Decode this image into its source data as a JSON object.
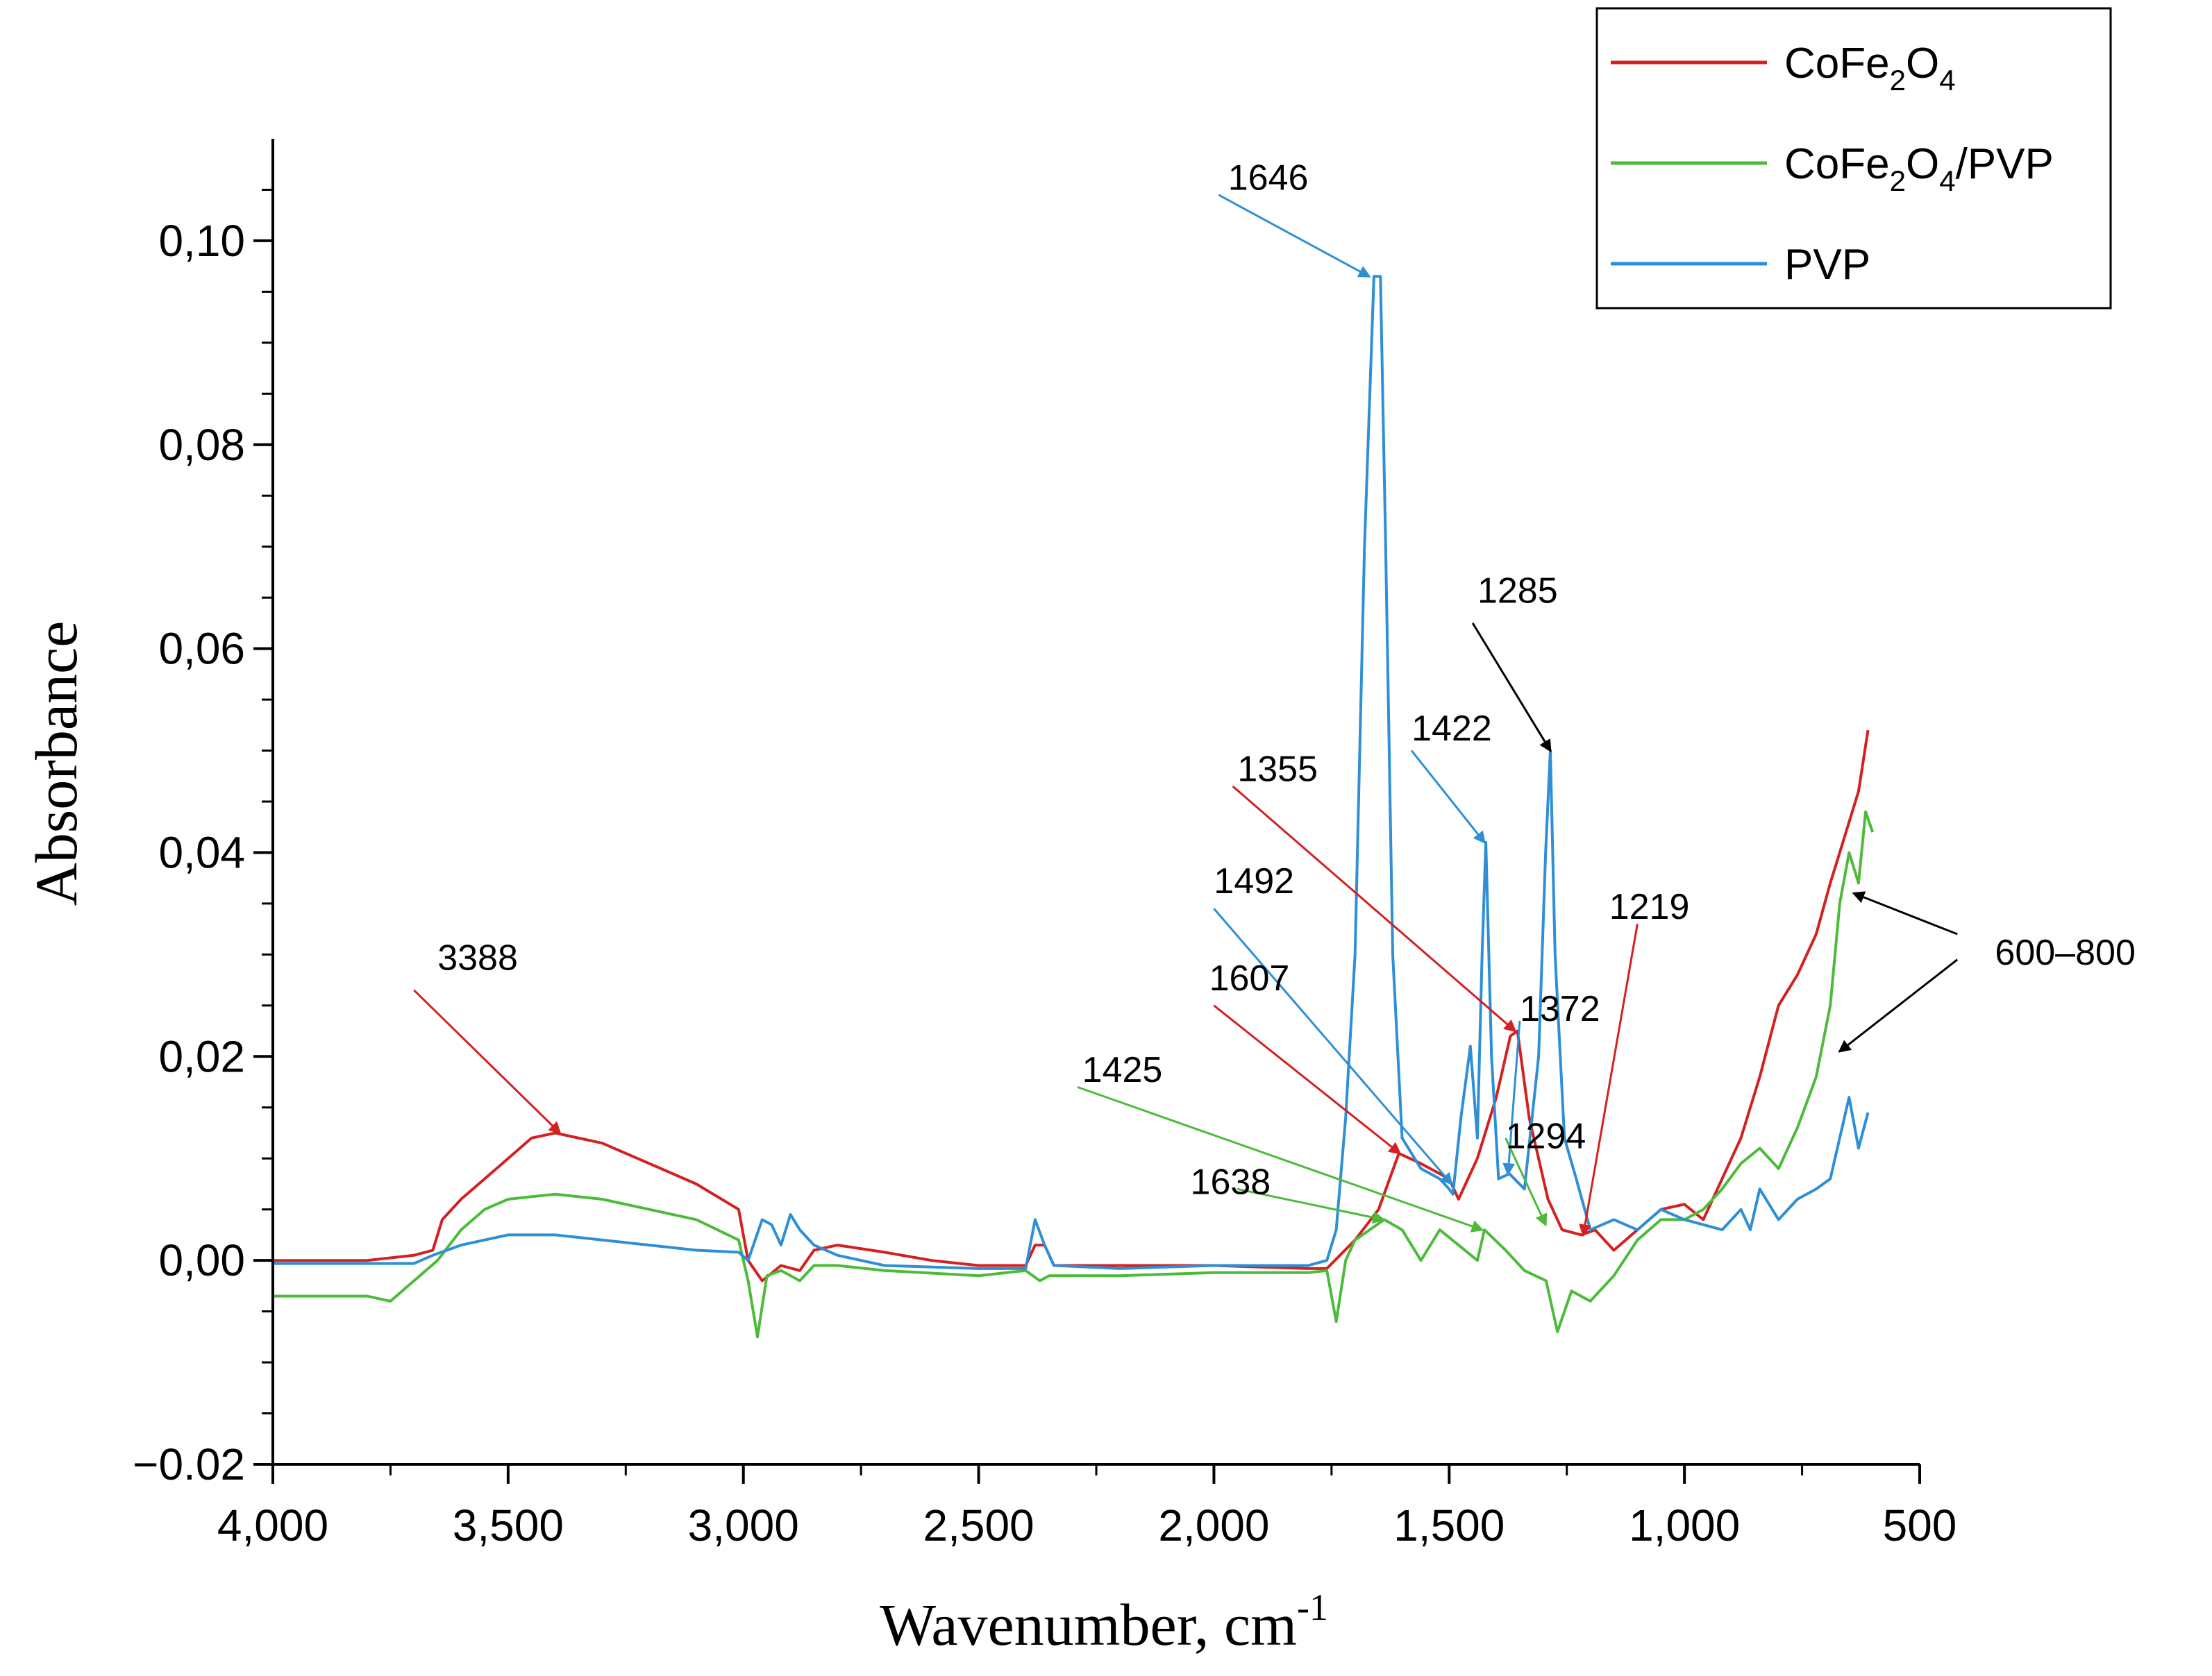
{
  "chart_data": {
    "type": "line",
    "title": "",
    "xlabel": "Wavenumber, cm",
    "xlabel_sup": "-1",
    "ylabel": "Absorbance",
    "xlim": [
      4000,
      500
    ],
    "ylim": [
      -0.02,
      0.11
    ],
    "x_ticks": [
      {
        "value": 4000,
        "label": "4,000"
      },
      {
        "value": 3500,
        "label": "3,500"
      },
      {
        "value": 3000,
        "label": "3,000"
      },
      {
        "value": 2500,
        "label": "2,500"
      },
      {
        "value": 2000,
        "label": "2,000"
      },
      {
        "value": 1500,
        "label": "1,500"
      },
      {
        "value": 1000,
        "label": "1,000"
      },
      {
        "value": 500,
        "label": "500"
      }
    ],
    "y_ticks": [
      {
        "value": -0.02,
        "label": "−0.02"
      },
      {
        "value": 0.0,
        "label": "0,00"
      },
      {
        "value": 0.02,
        "label": "0,02"
      },
      {
        "value": 0.04,
        "label": "0,04"
      },
      {
        "value": 0.06,
        "label": "0,06"
      },
      {
        "value": 0.08,
        "label": "0,08"
      },
      {
        "value": 0.1,
        "label": "0,10"
      }
    ],
    "legend": {
      "position": "top-right",
      "entries": [
        {
          "series": "CoFe2O4",
          "text": "CoFe",
          "sub1": "2",
          "mid": "O",
          "sub2": "4",
          "tail": ""
        },
        {
          "series": "CoFe2O4/PVP",
          "text": "CoFe",
          "sub1": "2",
          "mid": "O",
          "sub2": "4",
          "tail": "/PVP"
        },
        {
          "series": "PVP",
          "text": "PVP",
          "sub1": "",
          "mid": "",
          "sub2": "",
          "tail": ""
        }
      ]
    },
    "series": [
      {
        "name": "CoFe2O4",
        "color": "#d42020",
        "points": [
          [
            4000,
            0
          ],
          [
            3800,
            0
          ],
          [
            3700,
            0.0005
          ],
          [
            3660,
            0.001
          ],
          [
            3640,
            0.004
          ],
          [
            3600,
            0.006
          ],
          [
            3550,
            0.008
          ],
          [
            3500,
            0.01
          ],
          [
            3450,
            0.012
          ],
          [
            3400,
            0.0125
          ],
          [
            3300,
            0.0115
          ],
          [
            3200,
            0.0095
          ],
          [
            3100,
            0.0075
          ],
          [
            3010,
            0.005
          ],
          [
            2990,
            0.0
          ],
          [
            2960,
            -0.002
          ],
          [
            2920,
            -0.0005
          ],
          [
            2880,
            -0.001
          ],
          [
            2850,
            0.001
          ],
          [
            2800,
            0.0015
          ],
          [
            2700,
            0.0008
          ],
          [
            2600,
            0.0
          ],
          [
            2500,
            -0.0005
          ],
          [
            2400,
            -0.0005
          ],
          [
            2380,
            0.0015
          ],
          [
            2360,
            0.0015
          ],
          [
            2340,
            -0.0005
          ],
          [
            2200,
            -0.0005
          ],
          [
            2000,
            -0.0005
          ],
          [
            1800,
            -0.0008
          ],
          [
            1760,
            -0.0008
          ],
          [
            1700,
            0.002
          ],
          [
            1650,
            0.005
          ],
          [
            1607,
            0.0105
          ],
          [
            1560,
            0.0095
          ],
          [
            1520,
            0.0085
          ],
          [
            1500,
            0.008
          ],
          [
            1480,
            0.006
          ],
          [
            1440,
            0.01
          ],
          [
            1400,
            0.016
          ],
          [
            1370,
            0.022
          ],
          [
            1355,
            0.0225
          ],
          [
            1330,
            0.014
          ],
          [
            1290,
            0.006
          ],
          [
            1260,
            0.003
          ],
          [
            1219,
            0.0025
          ],
          [
            1190,
            0.003
          ],
          [
            1150,
            0.001
          ],
          [
            1100,
            0.003
          ],
          [
            1050,
            0.005
          ],
          [
            1000,
            0.0055
          ],
          [
            960,
            0.004
          ],
          [
            920,
            0.008
          ],
          [
            880,
            0.012
          ],
          [
            840,
            0.018
          ],
          [
            800,
            0.025
          ],
          [
            760,
            0.028
          ],
          [
            720,
            0.032
          ],
          [
            690,
            0.037
          ],
          [
            670,
            0.04
          ],
          [
            650,
            0.043
          ],
          [
            630,
            0.046
          ],
          [
            610,
            0.052
          ]
        ]
      },
      {
        "name": "CoFe2O4/PVP",
        "color": "#4cbb3a",
        "points": [
          [
            4000,
            -0.0035
          ],
          [
            3900,
            -0.0035
          ],
          [
            3800,
            -0.0035
          ],
          [
            3750,
            -0.004
          ],
          [
            3700,
            -0.002
          ],
          [
            3650,
            0.0
          ],
          [
            3600,
            0.003
          ],
          [
            3550,
            0.005
          ],
          [
            3500,
            0.006
          ],
          [
            3400,
            0.0065
          ],
          [
            3300,
            0.006
          ],
          [
            3200,
            0.005
          ],
          [
            3100,
            0.004
          ],
          [
            3010,
            0.002
          ],
          [
            2990,
            -0.002
          ],
          [
            2970,
            -0.0075
          ],
          [
            2950,
            -0.0015
          ],
          [
            2920,
            -0.001
          ],
          [
            2880,
            -0.002
          ],
          [
            2850,
            -0.0005
          ],
          [
            2800,
            -0.0005
          ],
          [
            2700,
            -0.001
          ],
          [
            2500,
            -0.0015
          ],
          [
            2400,
            -0.001
          ],
          [
            2370,
            -0.002
          ],
          [
            2350,
            -0.0015
          ],
          [
            2200,
            -0.0015
          ],
          [
            2000,
            -0.0012
          ],
          [
            1800,
            -0.0012
          ],
          [
            1760,
            -0.001
          ],
          [
            1740,
            -0.006
          ],
          [
            1720,
            0.0
          ],
          [
            1700,
            0.002
          ],
          [
            1638,
            0.004
          ],
          [
            1600,
            0.003
          ],
          [
            1560,
            0.0
          ],
          [
            1520,
            0.003
          ],
          [
            1480,
            0.0015
          ],
          [
            1440,
            0.0
          ],
          [
            1425,
            0.003
          ],
          [
            1380,
            0.001
          ],
          [
            1340,
            -0.001
          ],
          [
            1294,
            -0.002
          ],
          [
            1270,
            -0.007
          ],
          [
            1240,
            -0.003
          ],
          [
            1200,
            -0.004
          ],
          [
            1150,
            -0.0015
          ],
          [
            1100,
            0.002
          ],
          [
            1050,
            0.004
          ],
          [
            1000,
            0.004
          ],
          [
            960,
            0.005
          ],
          [
            920,
            0.007
          ],
          [
            880,
            0.0095
          ],
          [
            840,
            0.011
          ],
          [
            800,
            0.009
          ],
          [
            760,
            0.013
          ],
          [
            720,
            0.018
          ],
          [
            690,
            0.025
          ],
          [
            670,
            0.035
          ],
          [
            650,
            0.04
          ],
          [
            630,
            0.037
          ],
          [
            615,
            0.044
          ],
          [
            600,
            0.042
          ]
        ]
      },
      {
        "name": "PVP",
        "color": "#2e8fd6",
        "points": [
          [
            4000,
            -0.0003
          ],
          [
            3800,
            -0.0003
          ],
          [
            3700,
            -0.0003
          ],
          [
            3660,
            0.0005
          ],
          [
            3600,
            0.0015
          ],
          [
            3500,
            0.0025
          ],
          [
            3400,
            0.0025
          ],
          [
            3300,
            0.002
          ],
          [
            3200,
            0.0015
          ],
          [
            3100,
            0.001
          ],
          [
            3010,
            0.0008
          ],
          [
            2990,
            0.0
          ],
          [
            2960,
            0.004
          ],
          [
            2940,
            0.0035
          ],
          [
            2920,
            0.0015
          ],
          [
            2900,
            0.0045
          ],
          [
            2880,
            0.003
          ],
          [
            2850,
            0.0015
          ],
          [
            2800,
            0.0005
          ],
          [
            2700,
            -0.0005
          ],
          [
            2500,
            -0.0008
          ],
          [
            2400,
            -0.0008
          ],
          [
            2380,
            0.004
          ],
          [
            2360,
            0.0015
          ],
          [
            2340,
            -0.0005
          ],
          [
            2200,
            -0.0008
          ],
          [
            2000,
            -0.0005
          ],
          [
            1800,
            -0.0005
          ],
          [
            1760,
            0.0
          ],
          [
            1740,
            0.003
          ],
          [
            1720,
            0.014
          ],
          [
            1700,
            0.03
          ],
          [
            1680,
            0.07
          ],
          [
            1660,
            0.0965
          ],
          [
            1646,
            0.0965
          ],
          [
            1635,
            0.07
          ],
          [
            1620,
            0.03
          ],
          [
            1600,
            0.012
          ],
          [
            1560,
            0.009
          ],
          [
            1520,
            0.008
          ],
          [
            1500,
            0.007
          ],
          [
            1492,
            0.0065
          ],
          [
            1475,
            0.014
          ],
          [
            1455,
            0.021
          ],
          [
            1440,
            0.012
          ],
          [
            1430,
            0.03
          ],
          [
            1422,
            0.041
          ],
          [
            1410,
            0.02
          ],
          [
            1395,
            0.008
          ],
          [
            1372,
            0.0085
          ],
          [
            1340,
            0.007
          ],
          [
            1310,
            0.02
          ],
          [
            1295,
            0.04
          ],
          [
            1285,
            0.05
          ],
          [
            1275,
            0.03
          ],
          [
            1255,
            0.012
          ],
          [
            1230,
            0.008
          ],
          [
            1200,
            0.003
          ],
          [
            1150,
            0.004
          ],
          [
            1100,
            0.003
          ],
          [
            1050,
            0.005
          ],
          [
            1000,
            0.004
          ],
          [
            960,
            0.0035
          ],
          [
            920,
            0.003
          ],
          [
            880,
            0.005
          ],
          [
            860,
            0.003
          ],
          [
            840,
            0.007
          ],
          [
            800,
            0.004
          ],
          [
            760,
            0.006
          ],
          [
            720,
            0.007
          ],
          [
            690,
            0.008
          ],
          [
            670,
            0.012
          ],
          [
            650,
            0.016
          ],
          [
            630,
            0.011
          ],
          [
            610,
            0.0145
          ]
        ]
      }
    ],
    "annotations": [
      {
        "label": "3388",
        "color": "#d42020",
        "text_at": [
          3650,
          0.0285
        ],
        "line_from": [
          3700,
          0.0265
        ],
        "arrow_to": [
          3390,
          0.0125
        ]
      },
      {
        "label": "1646",
        "color": "#2e8fd6",
        "text_at": [
          1970,
          0.105
        ],
        "line_from": [
          1990,
          0.1045
        ],
        "arrow_to": [
          1670,
          0.0965
        ]
      },
      {
        "label": "1285",
        "color": "#000000",
        "text_at": [
          1440,
          0.0645
        ],
        "line_from": [
          1450,
          0.0625
        ],
        "arrow_to": [
          1285,
          0.05
        ]
      },
      {
        "label": "1422",
        "color": "#2e8fd6",
        "text_at": [
          1580,
          0.051
        ],
        "line_from": [
          1580,
          0.05
        ],
        "arrow_to": [
          1425,
          0.041
        ]
      },
      {
        "label": "1355",
        "color": "#d42020",
        "text_at": [
          1950,
          0.047
        ],
        "line_from": [
          1960,
          0.0465
        ],
        "arrow_to": [
          1360,
          0.0225
        ]
      },
      {
        "label": "1492",
        "color": "#2e8fd6",
        "text_at": [
          2000,
          0.036
        ],
        "line_from": [
          2000,
          0.0345
        ],
        "arrow_to": [
          1495,
          0.0075
        ]
      },
      {
        "label": "1219",
        "color": "#d42020",
        "text_at": [
          1160,
          0.0335
        ],
        "line_from": [
          1100,
          0.033
        ],
        "arrow_to": [
          1215,
          0.0025
        ]
      },
      {
        "label": "1372",
        "color": "#2e8fd6",
        "text_at": [
          1350,
          0.0235
        ],
        "line_from": [
          1350,
          0.0235
        ],
        "arrow_to": [
          1375,
          0.0085
        ]
      },
      {
        "label": "1607",
        "color": "#d42020",
        "text_at": [
          2010,
          0.0265
        ],
        "line_from": [
          2000,
          0.025
        ],
        "arrow_to": [
          1605,
          0.0105
        ]
      },
      {
        "label": "1425",
        "color": "#4cbb3a",
        "text_at": [
          2280,
          0.0175
        ],
        "line_from": [
          2290,
          0.017
        ],
        "arrow_to": [
          1430,
          0.003
        ]
      },
      {
        "label": "1638",
        "color": "#4cbb3a",
        "text_at": [
          2050,
          0.0065
        ],
        "line_from": [
          1950,
          0.007
        ],
        "arrow_to": [
          1640,
          0.004
        ]
      },
      {
        "label": "1294",
        "color": "#4cbb3a",
        "text_at": [
          1380,
          0.011
        ],
        "line_from": [
          1380,
          0.012
        ],
        "arrow_to": [
          1295,
          0.0035
        ]
      },
      {
        "label": "600–800",
        "color": "#000000",
        "text_at": [
          340,
          0.029
        ],
        "line_from": [
          420,
          0.032
        ],
        "arrow_to": [
          640,
          0.036
        ]
      }
    ],
    "extra_arrows": [
      {
        "color": "#000000",
        "line_from": [
          420,
          0.0295
        ],
        "arrow_to": [
          670,
          0.0205
        ]
      }
    ]
  }
}
